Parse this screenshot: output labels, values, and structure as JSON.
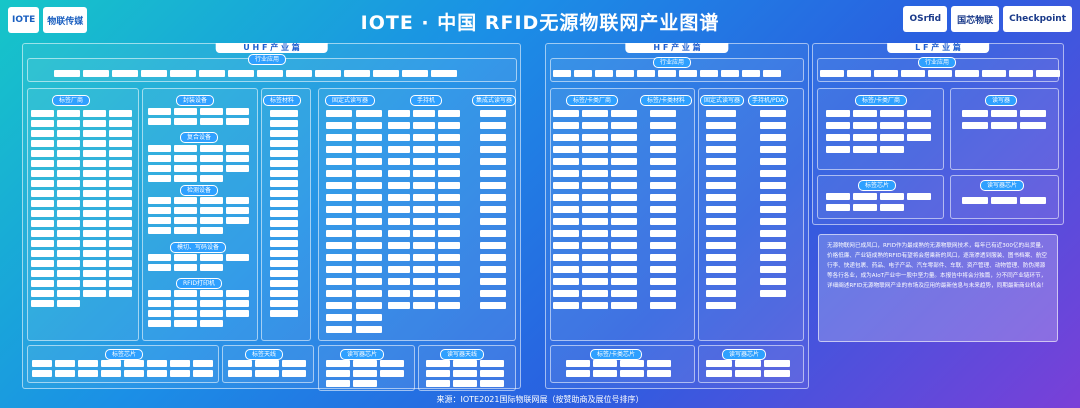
{
  "header": {
    "title": "IOTE · 中国 RFID无源物联网产业图谱",
    "left_logos": [
      "IOTE",
      "物联传媒"
    ],
    "right_logos": [
      "OSrfid",
      "国芯物联",
      "Checkpoint"
    ]
  },
  "uhf": {
    "section": "U H F 产 业 篇",
    "industry_label": "行业应用",
    "industry": [
      "",
      "",
      "",
      "",
      "",
      "",
      "",
      "",
      "",
      "",
      "",
      "",
      "",
      ""
    ],
    "tag_makers": "标签厂商",
    "package_equipment": "封装设备",
    "composite_equipment": "复合设备",
    "inspection_equipment": "检测设备",
    "cutting_equipment": "模切、写码设备",
    "rfid_printer": "RFID打印机",
    "tag_material": "标签材料",
    "fixed_reader": "固定式读写器",
    "handheld": "手持机",
    "integrated_reader": "集成式读写器",
    "tag_chip": "标签芯片",
    "tag_antenna": "标签天线",
    "reader_chip": "读写器芯片",
    "reader_antenna": "读写器天线"
  },
  "hf": {
    "section": "H F 产 业 篇",
    "industry_label": "行业应用",
    "tag_card_makers": "标签/卡类厂商",
    "tag_card_material": "标签/卡类材料",
    "fixed_reader": "固定式读写器",
    "handheld_pda": "手持机/PDA",
    "tag_chip": "标签/卡类芯片",
    "reader_chip": "读写器芯片"
  },
  "lf": {
    "section": "L F 产 业 篇",
    "industry_label": "行业应用",
    "tag_card_makers": "标签/卡类厂商",
    "reader": "读写器",
    "tag_chip": "标签芯片",
    "reader_chip": "读写器芯片"
  },
  "intro": "无源物联网已成风口，RFID作为最成熟的无源物联网技术，每年已有近300亿的出货量，价格低廉、产业链成熟的RFID有望将会搭乘新的风口，逐渐渗透到服装、图书档案、航空行李、快递包裹、药品、电子产品、汽车零部件、车联、资产管理、动物管理、防伪溯源等各行各业，成为AIoT产业中一股中坚力量。本报告中将会分独篇，分不同产业链环节，详细阐述RFID无源物联网产业的市场及应用的最新信息与未来趋势，同期最新商业机会！",
  "source": "来源：IOTE2021国际物联网展（按赞助商及展位号排序）",
  "colors": {
    "accent": "#2ea0ff",
    "panel_border": "#ffffff"
  }
}
